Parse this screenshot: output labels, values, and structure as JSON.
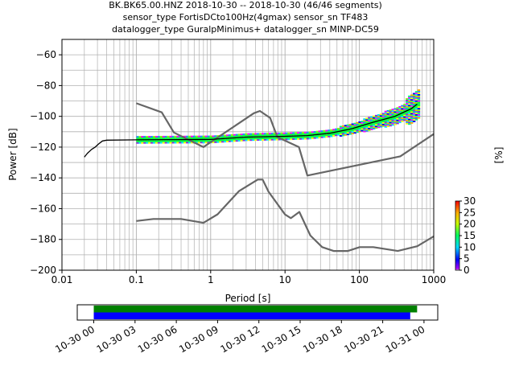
{
  "title": {
    "line1": "BK.BK65.00.HNZ   2018-10-30 -- 2018-10-30  (46/46 segments)",
    "line2": "sensor_type FortisDCto100Hz(4gmax) sensor_sn TF483",
    "line3": "datalogger_type GuralpMinimus+ datalogger_sn MINP-DC59"
  },
  "colors": {
    "model": "#666666",
    "mode_line": "#000000",
    "coverage_green": "#008000",
    "coverage_blue": "#0000ff"
  },
  "chart_data": [
    {
      "type": "line",
      "subtype": "ppsd",
      "xlabel": "Period [s]",
      "ylabel": "Power [dB]",
      "xscale": "log",
      "xlim": [
        0.01,
        1000
      ],
      "ylim": [
        -200,
        -50
      ],
      "grid": true,
      "xticks": [
        "0.01",
        "0.1",
        "1",
        "10",
        "100",
        "1000"
      ],
      "yticks": [
        "−60",
        "−80",
        "−100",
        "−120",
        "−140",
        "−160",
        "−180",
        "−200"
      ],
      "series": [
        {
          "name": "",
          "role": "noise-model-high",
          "x": [
            0.1,
            0.22,
            0.32,
            0.8,
            3.8,
            4.6,
            6.3,
            7.9,
            15.4,
            20,
            354.8,
            1000
          ],
          "y": [
            -91.5,
            -97.4,
            -110.5,
            -120,
            -98,
            -96.5,
            -101,
            -113.5,
            -120,
            -138.5,
            -126,
            -111.5
          ]
        },
        {
          "name": "",
          "role": "noise-model-low",
          "x": [
            0.1,
            0.17,
            0.4,
            0.8,
            1.24,
            2.4,
            4.3,
            5,
            6,
            10,
            12,
            15.6,
            21.9,
            31.6,
            45,
            70,
            101,
            154,
            328,
            600,
            1000
          ],
          "y": [
            -168,
            -166.7,
            -166.7,
            -169.2,
            -163.7,
            -148.6,
            -141.1,
            -141.1,
            -149,
            -163.8,
            -166.2,
            -162.1,
            -177.5,
            -185,
            -187.5,
            -187.5,
            -185,
            -185,
            -187.5,
            -184.4,
            -178
          ]
        },
        {
          "name": "",
          "role": "mode",
          "x": [
            0.02,
            0.022,
            0.025,
            0.028,
            0.031,
            0.035,
            0.04,
            0.1,
            1,
            3,
            10,
            20,
            40,
            80,
            150,
            300,
            500,
            600
          ],
          "y": [
            -126.5,
            -124,
            -121.5,
            -120,
            -118,
            -116,
            -115.5,
            -115.3,
            -115,
            -113.5,
            -113,
            -112.5,
            -111,
            -108,
            -104,
            -100,
            -95,
            -92
          ]
        }
      ],
      "colorbar": {
        "label": "[%]",
        "ticks": [
          "0",
          "5",
          "10",
          "15",
          "20",
          "25",
          "30"
        ],
        "range": [
          0,
          30
        ]
      }
    },
    {
      "type": "timeline",
      "subtype": "data-coverage",
      "tick_labels": [
        "10-30 00",
        "10-30 03",
        "10-30 06",
        "10-30 09",
        "10-30 12",
        "10-30 15",
        "10-30 18",
        "10-30 21",
        "10-31 00"
      ],
      "xlim_hours": [
        -1.2,
        25.0
      ],
      "bars": [
        {
          "name": "",
          "color_key": "coverage_green",
          "start_hour": 0,
          "end_hour": 23.5
        },
        {
          "name": "",
          "color_key": "coverage_blue",
          "start_hour": 0,
          "end_hour": 23.0
        }
      ]
    }
  ]
}
